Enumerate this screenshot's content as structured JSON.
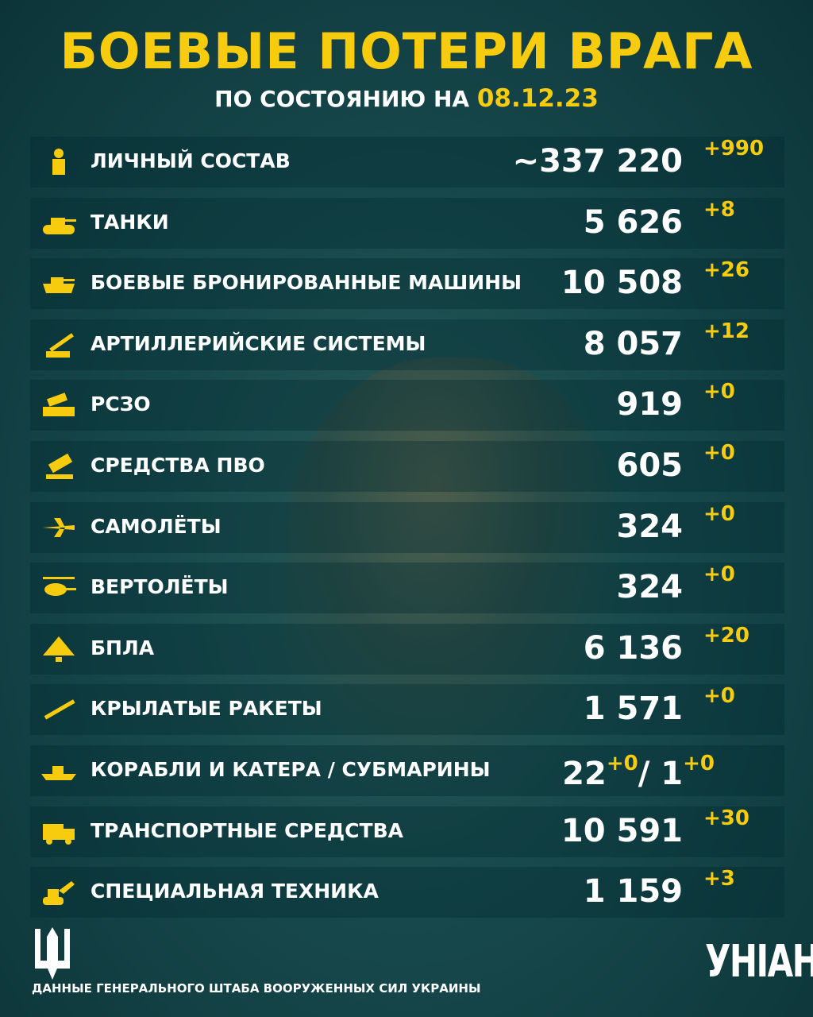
{
  "header": {
    "title": "БОЕВЫЕ ПОТЕРИ ВРАГА",
    "subtitle": "ПО СОСТОЯНИЮ НА",
    "date": "08.12.23"
  },
  "colors": {
    "accent": "#f7cc0f",
    "background": "#17494c",
    "text": "#ffffff"
  },
  "rows": [
    {
      "icon": "soldier-icon",
      "label": "ЛИЧНЫЙ СОСТАВ",
      "value": "~337 220",
      "delta": "+990"
    },
    {
      "icon": "tank-icon",
      "label": "ТАНКИ",
      "value": "5 626",
      "delta": "+8"
    },
    {
      "icon": "armored-vehicle-icon",
      "label": "БОЕВЫЕ БРОНИРОВАННЫЕ МАШИНЫ",
      "value": "10 508",
      "delta": "+26"
    },
    {
      "icon": "artillery-icon",
      "label": "АРТИЛЛЕРИЙСКИЕ СИСТЕМЫ",
      "value": "8 057",
      "delta": "+12"
    },
    {
      "icon": "mlrs-icon",
      "label": "РСЗО",
      "value": "919",
      "delta": "+0"
    },
    {
      "icon": "air-defense-icon",
      "label": "СРЕДСТВА ПВО",
      "value": "605",
      "delta": "+0"
    },
    {
      "icon": "airplane-icon",
      "label": "САМОЛЁТЫ",
      "value": "324",
      "delta": "+0"
    },
    {
      "icon": "helicopter-icon",
      "label": "ВЕРТОЛЁТЫ",
      "value": "324",
      "delta": "+0"
    },
    {
      "icon": "drone-icon",
      "label": "БПЛА",
      "value": "6 136",
      "delta": "+20"
    },
    {
      "icon": "missile-icon",
      "label": "КРЫЛАТЫЕ РАКЕТЫ",
      "value": "1 571",
      "delta": "+0"
    },
    {
      "icon": "ship-icon",
      "label": "КОРАБЛИ И КАТЕРА / СУБМАРИНЫ",
      "ships": "22",
      "ships_delta": "+0",
      "subs": "1",
      "subs_delta": "+0"
    },
    {
      "icon": "truck-icon",
      "label": "ТРАНСПОРТНЫЕ СРЕДСТВА",
      "value": "10 591",
      "delta": "+30"
    },
    {
      "icon": "excavator-icon",
      "label": "СПЕЦИАЛЬНАЯ ТЕХНИКА",
      "value": "1 159",
      "delta": "+3"
    }
  ],
  "footer": {
    "source": "ДАННЫЕ ГЕНЕРАЛЬНОГО ШТАБА ВООРУЖЕННЫХ СИЛ УКРАИНЫ",
    "logo": "УНІАН"
  }
}
